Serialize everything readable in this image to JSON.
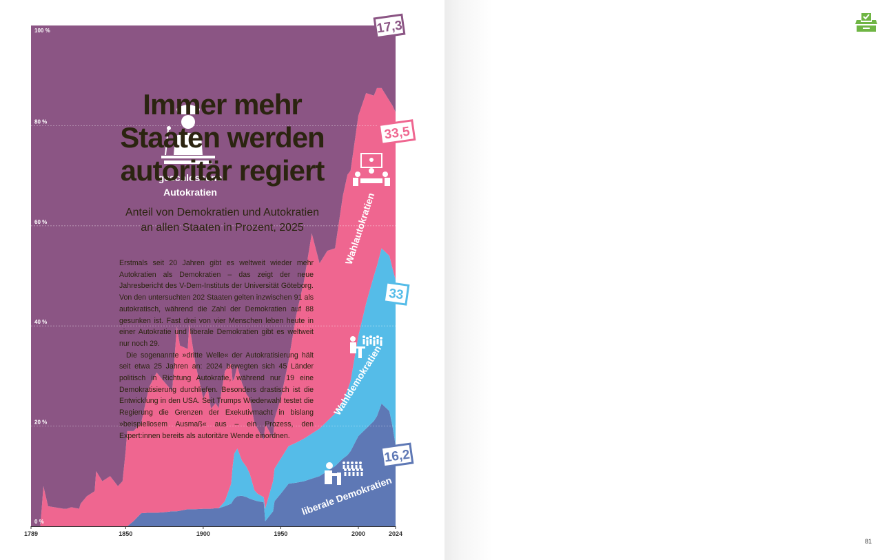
{
  "headline": {
    "line1": "Immer mehr",
    "line2": "Staaten werden",
    "line3": "autoritär regiert"
  },
  "subtitle": {
    "line1": "Anteil von Demokratien und Autokratien",
    "line2": "an allen Staaten in Prozent, 2025"
  },
  "body": {
    "paragraph1": "Erstmals seit 20 Jahren gibt es weltweit wieder mehr Autokratien als Demokratien – das zeigt der neue Jahresbericht des V-Dem-Instituts der Universität Göteborg. Von den untersuchten 202 Staaten gelten inzwischen 91 als autokratisch, während die Zahl der Demokratien auf 88 gesunken ist. Fast drei von vier Menschen leben heute in einer Autokratie und liberale Demokratien gibt es weltweit nur noch 29.",
    "paragraph2": "Die sogenannte »dritte Welle« der Autokratisierung hält seit etwa 25 Jahren an: 2024 bewegten sich 45 Länder politisch in Richtung Autokratie, während nur 19 eine Demokratisierung durchliefen. Besonders drastisch ist die Entwicklung in den USA. Seit Trumps Wiederwahl testet die Regierung die Grenzen der Exekutivmacht in bislang »beispiellosem Ausmaß« aus – ein Prozess, den Expert:innen bereits als autoritäre Wende einordnen."
  },
  "page_number": "81",
  "icons": {
    "corner": "ballot-box-icon",
    "closed": "military-officer-podium-icon",
    "electoral_autocracy": "meeting-table-icon",
    "electoral_democracy": "protest-crowd-icon",
    "liberal_democracy": "voting-crowd-icon"
  },
  "colors": {
    "closed_autocracy": "#8b5584",
    "electoral_autocracy": "#ef6690",
    "electoral_democracy": "#55bce8",
    "liberal_democracy": "#5e78b5",
    "headline": "#2b2410",
    "ballot_icon": "#6fb544"
  },
  "chart_data": {
    "type": "area",
    "stacked": true,
    "normalized_percent": true,
    "xlim": [
      1789,
      2024
    ],
    "ylim": [
      0,
      100
    ],
    "x_ticks": [
      "1789",
      "1850",
      "1900",
      "1950",
      "2000",
      "2024"
    ],
    "y_ticks": [
      "0 %",
      "20 %",
      "40 %",
      "60 %",
      "80 %",
      "100 %"
    ],
    "grid": "horizontal dashed",
    "x": [
      1789,
      1795,
      1796,
      1797,
      1800,
      1810,
      1812,
      1815,
      1820,
      1821,
      1825,
      1830,
      1831,
      1835,
      1840,
      1845,
      1848,
      1850,
      1851,
      1855,
      1860,
      1865,
      1870,
      1875,
      1880,
      1883,
      1885,
      1890,
      1891,
      1895,
      1900,
      1903,
      1905,
      1908,
      1910,
      1914,
      1918,
      1919,
      1920,
      1922,
      1925,
      1928,
      1930,
      1933,
      1935,
      1939,
      1940,
      1945,
      1946,
      1950,
      1955,
      1960,
      1965,
      1970,
      1975,
      1980,
      1985,
      1990,
      1993,
      1995,
      2000,
      2005,
      2010,
      2012,
      2015,
      2020,
      2022,
      2024
    ],
    "series": [
      {
        "name": "liberale Demokratien",
        "values": [
          0,
          0,
          0,
          0,
          0,
          0,
          0,
          0,
          0,
          0,
          0,
          0,
          0,
          0,
          0,
          0,
          0,
          0,
          0,
          1,
          2.6,
          2.7,
          2.7,
          2.8,
          3.0,
          3.0,
          3.1,
          3.4,
          3.4,
          3.4,
          3.5,
          3.5,
          3.5,
          3.6,
          3.6,
          4.0,
          4.5,
          5.0,
          5.5,
          6.0,
          6.1,
          5.8,
          5.5,
          5.2,
          5.0,
          4.8,
          1.0,
          3.0,
          5.0,
          6.5,
          8.5,
          8.7,
          9.0,
          9.5,
          10.0,
          11.0,
          12.0,
          13.5,
          14.2,
          15.0,
          18.0,
          19.5,
          21.0,
          22.0,
          24.5,
          23.0,
          20.0,
          16.2
        ]
      },
      {
        "name": "Wahldemokratien",
        "values": [
          0,
          0,
          0,
          0,
          0,
          0,
          0,
          0,
          0,
          0,
          0,
          0,
          0,
          0,
          0,
          0,
          0,
          0,
          0,
          0,
          0,
          0,
          0,
          0,
          0,
          0,
          0,
          0,
          0,
          0,
          0,
          0,
          0,
          0,
          0,
          1.0,
          4.0,
          7.0,
          9.0,
          9.5,
          7.0,
          6.0,
          5.0,
          2.0,
          1.5,
          1.0,
          2.5,
          6.0,
          6.5,
          7.0,
          7.5,
          8.0,
          8.5,
          9.0,
          9.5,
          10.0,
          10.5,
          11.5,
          13.0,
          14.0,
          20.0,
          25.0,
          29.0,
          30.0,
          31.0,
          31.0,
          31.5,
          33.0
        ]
      },
      {
        "name": "Wahlautokratien",
        "values": [
          0,
          0,
          4,
          8,
          4,
          3.5,
          3.5,
          3.8,
          3.5,
          4.5,
          6,
          7,
          11,
          9,
          10,
          8,
          9,
          15,
          19,
          18,
          18,
          25,
          28,
          26,
          24,
          37,
          33,
          32,
          37,
          29,
          22,
          24,
          20,
          21,
          20,
          26,
          24,
          17,
          15,
          16.5,
          15.5,
          14.5,
          15,
          13.5,
          13,
          11.5,
          17,
          8.5,
          10,
          12,
          17,
          25.5,
          31.5,
          40.0,
          33.0,
          34.0,
          33.0,
          41.0,
          43.0,
          42.0,
          44.0,
          42.0,
          36.0,
          35.5,
          32.0,
          31.0,
          32.5,
          33.5
        ]
      },
      {
        "name": "geschlossene Autokratien",
        "values": [
          100,
          100,
          96,
          92,
          96,
          96.5,
          96.5,
          96.2,
          96.5,
          95.5,
          94,
          93,
          89,
          91,
          90,
          92,
          91,
          85,
          81,
          81,
          79.4,
          72.3,
          69.3,
          71.2,
          73.0,
          60.0,
          63.9,
          64.6,
          59.6,
          67.6,
          74.5,
          72.5,
          76.5,
          75.4,
          76.4,
          69.0,
          67.5,
          71.0,
          70.5,
          68.0,
          71.4,
          73.7,
          74.5,
          79.3,
          80.5,
          82.7,
          79.5,
          82.5,
          78.5,
          74.5,
          67.0,
          57.8,
          51.0,
          41.5,
          47.5,
          45.0,
          44.5,
          34.0,
          29.8,
          29.0,
          18.0,
          13.5,
          14.0,
          12.5,
          12.5,
          15.0,
          16.0,
          17.3
        ]
      }
    ],
    "end_values": {
      "geschlossene Autokratien": "17,3",
      "Wahlautokratien": "33,5",
      "Wahldemokratien": "33",
      "liberale Demokratien": "16,2"
    },
    "labels": {
      "closed_line1": "geschlossene",
      "closed_line2": "Autokratien",
      "electoral_autocracy": "Wahlautokratien",
      "electoral_democracy": "Wahldemokratien",
      "liberal_democracy": "liberale Demokratien"
    }
  }
}
